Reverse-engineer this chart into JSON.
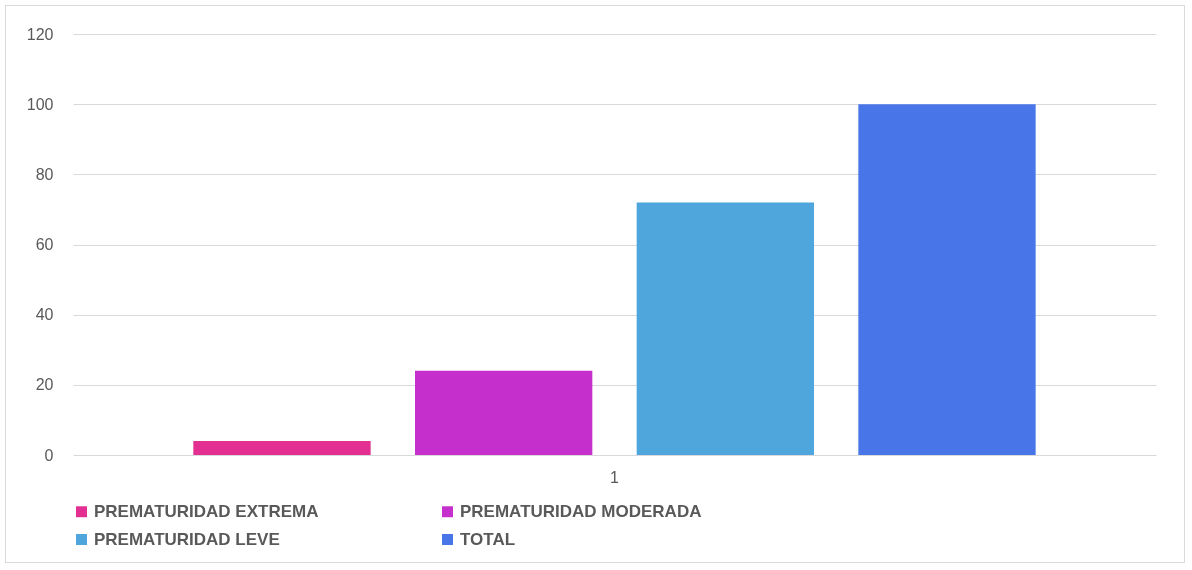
{
  "chart_data": {
    "type": "bar",
    "categories": [
      "1"
    ],
    "series": [
      {
        "name": "PREMATURIDAD EXTREMA",
        "color": "#e32f92",
        "values": [
          4
        ]
      },
      {
        "name": "PREMATURIDAD MODERADA",
        "color": "#c530cc",
        "values": [
          24
        ]
      },
      {
        "name": "PREMATURIDAD LEVE",
        "color": "#4fa6dc",
        "values": [
          72
        ]
      },
      {
        "name": "TOTAL",
        "color": "#4876e8",
        "values": [
          100
        ]
      }
    ],
    "ylim": [
      0,
      120
    ],
    "yticks": [
      0,
      20,
      40,
      60,
      80,
      100,
      120
    ],
    "grid": "y",
    "legend": "bottom"
  }
}
